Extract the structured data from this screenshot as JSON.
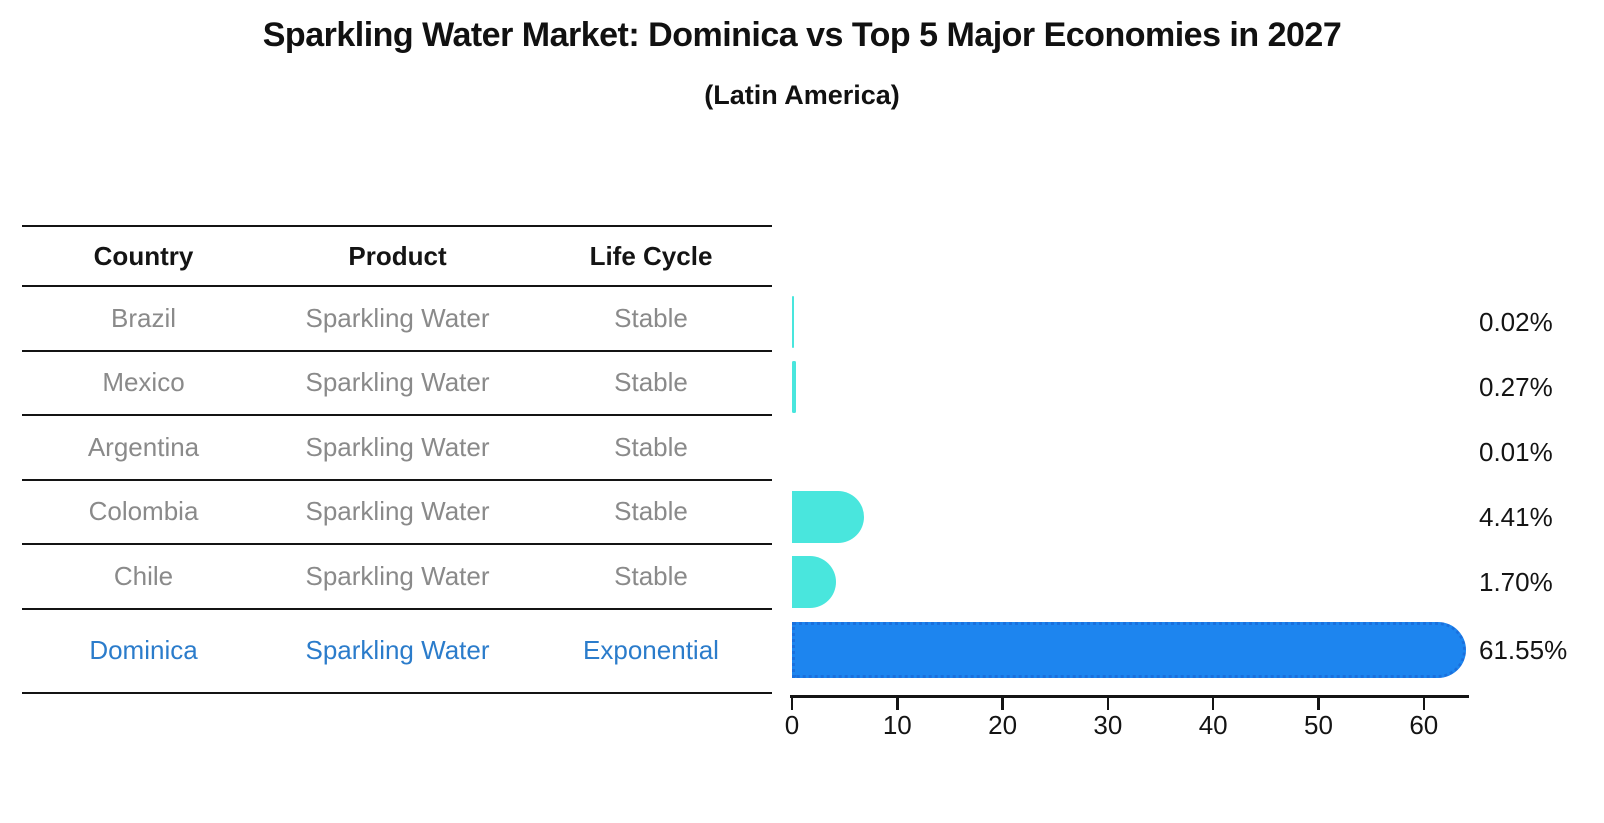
{
  "chart_data": {
    "type": "bar",
    "orientation": "horizontal",
    "title": "Sparkling Water Market: Dominica vs Top 5 Major Economies in 2027",
    "subtitle": "(Latin America)",
    "categories": [
      "Brazil",
      "Mexico",
      "Argentina",
      "Colombia",
      "Chile",
      "Dominica"
    ],
    "values": [
      0.02,
      0.27,
      0.01,
      4.41,
      1.7,
      61.55
    ],
    "value_labels": [
      "0.02%",
      "0.27%",
      "0.01%",
      "4.41%",
      "1.70%",
      "61.55%"
    ],
    "highlight_category": "Dominica",
    "x_ticks": [
      0,
      10,
      20,
      30,
      40,
      50,
      60
    ],
    "xlim": [
      0,
      64
    ],
    "xlabel": "",
    "ylabel": "",
    "grid": false,
    "legend": false,
    "colors": {
      "bar_default": "#49e6dd",
      "bar_highlight": "#1d85ef",
      "bar_highlight_border": "#1a70dd",
      "highlight_text": "#2b7ccb",
      "row_text": "#8a8a8a",
      "axis_and_text": "#141414"
    }
  },
  "table": {
    "headers": [
      "Country",
      "Product",
      "Life Cycle"
    ],
    "rows": [
      {
        "country": "Brazil",
        "product": "Sparkling Water",
        "life_cycle": "Stable",
        "highlighted": false
      },
      {
        "country": "Mexico",
        "product": "Sparkling Water",
        "life_cycle": "Stable",
        "highlighted": false
      },
      {
        "country": "Argentina",
        "product": "Sparkling Water",
        "life_cycle": "Stable",
        "highlighted": false
      },
      {
        "country": "Colombia",
        "product": "Sparkling Water",
        "life_cycle": "Stable",
        "highlighted": false
      },
      {
        "country": "Chile",
        "product": "Sparkling Water",
        "life_cycle": "Stable",
        "highlighted": false
      },
      {
        "country": "Dominica",
        "product": "Sparkling Water",
        "life_cycle": "Exponential",
        "highlighted": true
      }
    ]
  }
}
